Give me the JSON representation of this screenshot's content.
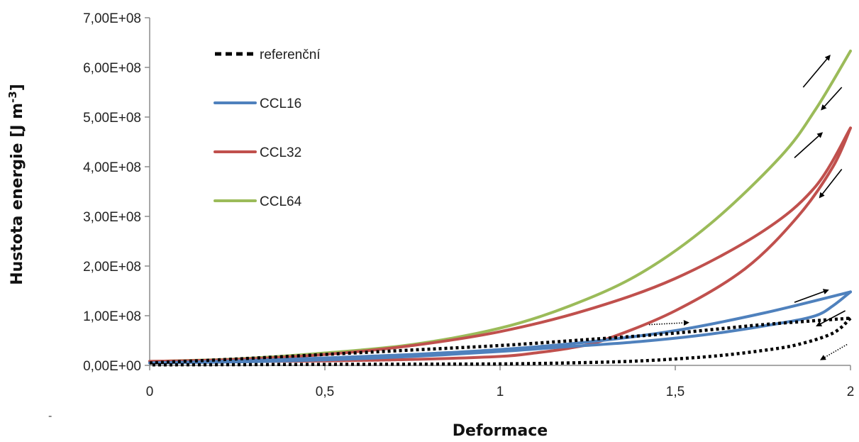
{
  "chart_data": {
    "type": "line",
    "xlabel": "Deformace",
    "ylabel": {
      "main": "Hustota energie [J m",
      "sup": "-3",
      "close": "]"
    },
    "xlim": [
      0,
      2
    ],
    "ylim": [
      0,
      700000000
    ],
    "x_ticks": [
      {
        "value": 0,
        "label": "0"
      },
      {
        "value": 0.5,
        "label": "0,5"
      },
      {
        "value": 1,
        "label": "1"
      },
      {
        "value": 1.5,
        "label": "1,5"
      },
      {
        "value": 2,
        "label": "2"
      }
    ],
    "y_ticks": [
      {
        "value": 0,
        "label": "0,00E+00"
      },
      {
        "value": 100000000,
        "label": "1,00E+08"
      },
      {
        "value": 200000000,
        "label": "2,00E+08"
      },
      {
        "value": 300000000,
        "label": "3,00E+08"
      },
      {
        "value": 400000000,
        "label": "4,00E+08"
      },
      {
        "value": 500000000,
        "label": "5,00E+08"
      },
      {
        "value": 600000000,
        "label": "6,00E+08"
      },
      {
        "value": 700000000,
        "label": "7,00E+08"
      }
    ],
    "grid": false,
    "legend_position": "top-left inside plot",
    "series": [
      {
        "name": "referenční",
        "color": "#000000",
        "style": "dotted",
        "loading": {
          "x": [
            0,
            0.25,
            0.5,
            0.75,
            1.0,
            1.25,
            1.5,
            1.75,
            2.0
          ],
          "y": [
            5000000,
            13000000,
            22000000,
            31000000,
            40000000,
            52000000,
            65000000,
            82000000,
            95000000
          ]
        },
        "unloading": {
          "x": [
            2.0,
            1.95,
            1.85,
            1.75,
            1.6,
            1.4,
            1.2,
            1.0,
            0.75,
            0.5,
            0.25,
            0
          ],
          "y": [
            95000000,
            65000000,
            42000000,
            30000000,
            18000000,
            9000000,
            5000000,
            3000000,
            2500000,
            2000000,
            1500000,
            1000000
          ]
        }
      },
      {
        "name": "CCL16",
        "color": "#4f81bd",
        "style": "solid",
        "loading": {
          "x": [
            0,
            0.25,
            0.5,
            0.75,
            1.0,
            1.25,
            1.5,
            1.75,
            2.0
          ],
          "y": [
            5000000,
            9000000,
            15000000,
            22000000,
            32000000,
            47000000,
            70000000,
            105000000,
            148000000
          ]
        },
        "unloading": {
          "x": [
            2.0,
            1.95,
            1.9,
            1.8,
            1.6,
            1.4,
            1.2,
            1.0,
            0.75,
            0.5,
            0.25,
            0
          ],
          "y": [
            148000000,
            120000000,
            100000000,
            85000000,
            63000000,
            48000000,
            38000000,
            28000000,
            18000000,
            11000000,
            7000000,
            5000000
          ]
        }
      },
      {
        "name": "CCL32",
        "color": "#c0504d",
        "style": "solid",
        "loading": {
          "x": [
            0,
            0.25,
            0.5,
            0.75,
            1.0,
            1.25,
            1.5,
            1.75,
            1.9,
            2.0
          ],
          "y": [
            8000000,
            12000000,
            22000000,
            40000000,
            68000000,
            112000000,
            175000000,
            270000000,
            360000000,
            478000000
          ]
        },
        "unloading": {
          "x": [
            2.0,
            1.95,
            1.85,
            1.7,
            1.5,
            1.3,
            1.2,
            1.1,
            1.0,
            0.75,
            0.5,
            0.25,
            0
          ],
          "y": [
            478000000,
            400000000,
            300000000,
            195000000,
            110000000,
            52000000,
            35000000,
            25000000,
            18000000,
            12000000,
            9000000,
            8000000,
            8000000
          ]
        }
      },
      {
        "name": "CCL64",
        "color": "#9bbb59",
        "style": "solid",
        "loading": {
          "x": [
            0,
            0.25,
            0.5,
            0.75,
            1.0,
            1.2,
            1.4,
            1.6,
            1.8,
            1.9,
            2.0
          ],
          "y": [
            8000000,
            13000000,
            25000000,
            42000000,
            75000000,
            120000000,
            185000000,
            285000000,
            420000000,
            515000000,
            633000000
          ]
        }
      }
    ]
  }
}
